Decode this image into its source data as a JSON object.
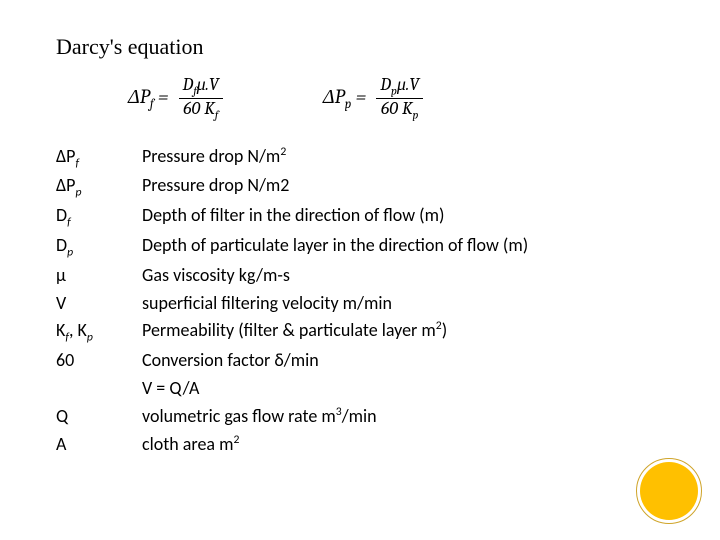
{
  "title": "Darcy's equation",
  "equations": {
    "eq1": {
      "lhs_base": "ΔP",
      "lhs_sub": "f",
      "num_a": "D",
      "num_a_sub": "f",
      "num_rest": "μ.V",
      "den_a": "60 K",
      "den_sub": "f"
    },
    "eq2": {
      "lhs_base": "ΔP",
      "lhs_sub": "p",
      "num_a": "D",
      "num_a_sub": "p",
      "num_rest": "μ.V",
      "den_a": "60 K",
      "den_sub": "p"
    }
  },
  "definitions": [
    {
      "symbol_html": "ΔP<sub class='sub'>f</sub>",
      "text_html": "Pressure drop N/m<sup class='sup'>2</sup>"
    },
    {
      "symbol_html": "ΔP<sub class='sub'>p</sub>",
      "text_html": "Pressure drop N/m2"
    },
    {
      "symbol_html": "D<sub class='sub'>f</sub>",
      "text_html": "Depth of filter in the direction of flow (m)"
    },
    {
      "symbol_html": "D<sub class='sub'>p</sub>",
      "text_html": "Depth of particulate layer in the direction of flow (m)"
    },
    {
      "symbol_html": "μ",
      "text_html": "Gas viscosity kg/m-s"
    },
    {
      "symbol_html": "V",
      "text_html": "superficial filtering velocity m/min"
    },
    {
      "symbol_html": "K<sub class='sub'>f</sub>, K<sub class='sub'>p</sub>",
      "text_html": "Permeability (filter & particulate layer m<sup class='sup'>2</sup>)"
    },
    {
      "symbol_html": "60",
      "text_html": "Conversion factor δ/min"
    },
    {
      "symbol_html": "",
      "text_html": "V = Q/A"
    },
    {
      "symbol_html": "Q",
      "text_html": "volumetric gas flow rate m<sup class='sup'>3</sup>/min"
    },
    {
      "symbol_html": "A",
      "text_html": "cloth area m<sup class='sup'>2</sup>"
    }
  ],
  "colors": {
    "accent_circle": "#ffc000",
    "ring": "#cfa429",
    "text": "#000000",
    "bg": "#ffffff"
  }
}
